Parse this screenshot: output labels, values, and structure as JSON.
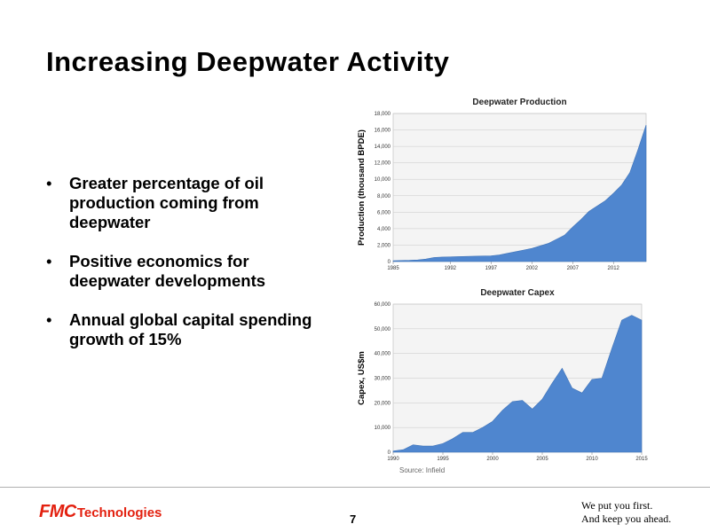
{
  "slide": {
    "title": "Increasing Deepwater Activity",
    "bullets": [
      "Greater percentage of oil production coming from deepwater",
      "Positive economics for deepwater developments",
      "Annual global capital spending growth of 15%"
    ],
    "bullet_glyph": "•",
    "source": "Source: Infield",
    "page_number": "7",
    "logo": {
      "mark": "FMC",
      "word": "Technologies"
    },
    "tagline": [
      "We put you first.",
      "And keep you ahead."
    ]
  },
  "colors": {
    "area_fill": "#4f86cf",
    "plot_bg": "#f4f4f4",
    "brand_red": "#e3200f"
  },
  "chart_data": [
    {
      "type": "area",
      "title": "Deepwater Production",
      "xlabel": "",
      "ylabel": "Production (thousand BPDE)",
      "xlim": [
        1985,
        2016
      ],
      "ylim": [
        0,
        18000
      ],
      "x_ticks": [
        1985,
        1992,
        1997,
        2002,
        2007,
        2012
      ],
      "x_tick_labels": [
        "1985",
        "1992",
        "1997",
        "2002",
        "2007",
        "2012"
      ],
      "y_ticks": [
        0,
        2000,
        4000,
        6000,
        8000,
        10000,
        12000,
        14000,
        16000,
        18000
      ],
      "y_tick_labels": [
        "0",
        "2,000",
        "4,000",
        "6,000",
        "8,000",
        "10,000",
        "12,000",
        "14,000",
        "16,000",
        "18,000"
      ],
      "grid": true,
      "x": [
        1985,
        1987,
        1988,
        1989,
        1990,
        1991,
        1993,
        1995,
        1997,
        1998,
        1999,
        2001,
        2002,
        2004,
        2006,
        2007,
        2008,
        2009,
        2011,
        2012,
        2013,
        2014,
        2015,
        2016
      ],
      "values": [
        100,
        150,
        200,
        300,
        500,
        550,
        600,
        650,
        700,
        800,
        1000,
        1400,
        1600,
        2200,
        3200,
        4200,
        5100,
        6100,
        7400,
        8300,
        9300,
        10800,
        13600,
        16600
      ]
    },
    {
      "type": "area",
      "title": "Deepwater Capex",
      "xlabel": "",
      "ylabel": "Capex, US$m",
      "xlim": [
        1990,
        2015
      ],
      "ylim": [
        0,
        60000
      ],
      "x_ticks": [
        1990,
        1995,
        2000,
        2005,
        2010,
        2015
      ],
      "x_tick_labels": [
        "1990",
        "1995",
        "2000",
        "2005",
        "2010",
        "2015"
      ],
      "y_ticks": [
        0,
        10000,
        20000,
        30000,
        40000,
        50000,
        60000
      ],
      "y_tick_labels": [
        "0",
        "10,000",
        "20,000",
        "30,000",
        "40,000",
        "50,000",
        "60,000"
      ],
      "grid": true,
      "x": [
        1990,
        1991,
        1992,
        1993,
        1994,
        1995,
        1996,
        1997,
        1998,
        1999,
        2000,
        2001,
        2002,
        2003,
        2004,
        2005,
        2006,
        2007,
        2008,
        2009,
        2010,
        2011,
        2012,
        2013,
        2014,
        2015
      ],
      "values": [
        500,
        1000,
        3000,
        2500,
        2500,
        3500,
        5500,
        8000,
        8000,
        10000,
        12500,
        17000,
        20500,
        21000,
        17500,
        21500,
        28000,
        34000,
        26000,
        24000,
        29500,
        30000,
        42000,
        53500,
        55500,
        53500
      ]
    }
  ]
}
